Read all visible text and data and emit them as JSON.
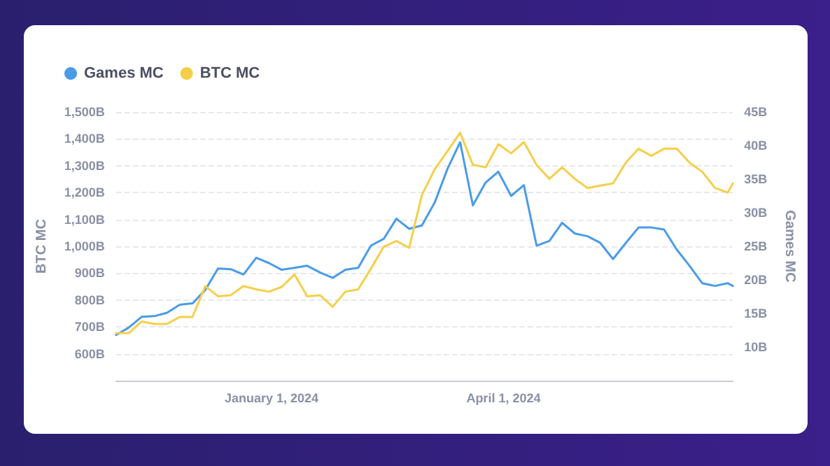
{
  "chart_data": {
    "type": "line",
    "x": [
      "2023-11-01",
      "2023-11-06",
      "2023-11-11",
      "2023-11-16",
      "2023-11-21",
      "2023-11-26",
      "2023-12-01",
      "2023-12-06",
      "2023-12-11",
      "2023-12-16",
      "2023-12-21",
      "2023-12-26",
      "2023-12-31",
      "2024-01-05",
      "2024-01-10",
      "2024-01-15",
      "2024-01-20",
      "2024-01-25",
      "2024-01-30",
      "2024-02-04",
      "2024-02-09",
      "2024-02-14",
      "2024-02-19",
      "2024-02-24",
      "2024-02-29",
      "2024-03-05",
      "2024-03-10",
      "2024-03-15",
      "2024-03-20",
      "2024-03-25",
      "2024-03-30",
      "2024-04-04",
      "2024-04-09",
      "2024-04-14",
      "2024-04-19",
      "2024-04-24",
      "2024-04-29",
      "2024-05-04",
      "2024-05-09",
      "2024-05-14",
      "2024-05-19",
      "2024-05-24",
      "2024-05-29",
      "2024-06-03",
      "2024-06-08",
      "2024-06-13",
      "2024-06-18",
      "2024-06-23",
      "2024-06-28",
      "2024-06-30"
    ],
    "series": [
      {
        "name": "Games MC",
        "color": "#4a9be8",
        "axis": "y2",
        "values": [
          11.8,
          12.9,
          14.5,
          14.6,
          15.1,
          16.3,
          16.5,
          18.5,
          21.7,
          21.6,
          20.8,
          23.3,
          22.5,
          21.5,
          21.8,
          22.1,
          21.1,
          20.3,
          21.5,
          21.8,
          25.1,
          26.1,
          29.1,
          27.6,
          28.1,
          31.5,
          36.5,
          40.5,
          31.1,
          34.5,
          36.1,
          32.5,
          34.1,
          25.1,
          25.8,
          28.5,
          26.9,
          26.5,
          25.5,
          23.1,
          25.5,
          27.8,
          27.8,
          27.5,
          24.5,
          22.1,
          19.5,
          19.1,
          19.5,
          19.1
        ]
      },
      {
        "name": "BTC MC",
        "color": "#f5cf4a",
        "values": [
          677,
          677,
          720,
          711,
          711,
          737,
          737,
          852,
          814,
          818,
          852,
          840,
          831,
          849,
          895,
          814,
          818,
          775,
          831,
          840,
          917,
          998,
          1020,
          994,
          1191,
          1286,
          1354,
          1423,
          1303,
          1294,
          1380,
          1346,
          1388,
          1303,
          1251,
          1294,
          1251,
          1217,
          1226,
          1234,
          1311,
          1363,
          1337,
          1363,
          1363,
          1311,
          1277,
          1217,
          1200,
          1234
        ]
      }
    ],
    "ylabel": "BTC MC",
    "y2label": "Games MC",
    "xlim": [
      "2023-11-01",
      "2024-06-30"
    ],
    "xticks": [
      {
        "value": "2024-01-01",
        "label": "January 1, 2024"
      },
      {
        "value": "2024-04-01",
        "label": "April 1, 2024"
      }
    ],
    "ylim": [
      500,
      1500
    ],
    "yticks": [
      {
        "value": 600,
        "label": "600B"
      },
      {
        "value": 700,
        "label": "700B"
      },
      {
        "value": 800,
        "label": "800B"
      },
      {
        "value": 900,
        "label": "900B"
      },
      {
        "value": 1000,
        "label": "1,000B"
      },
      {
        "value": 1100,
        "label": "1,100B"
      },
      {
        "value": 1200,
        "label": "1,200B"
      },
      {
        "value": 1300,
        "label": "1,300B"
      },
      {
        "value": 1400,
        "label": "1,400B"
      },
      {
        "value": 1500,
        "label": "1,500B"
      }
    ],
    "y2lim": [
      5,
      45
    ],
    "y2ticks": [
      {
        "value": 10,
        "label": "10B"
      },
      {
        "value": 15,
        "label": "15B"
      },
      {
        "value": 20,
        "label": "20B"
      },
      {
        "value": 25,
        "label": "25B"
      },
      {
        "value": 30,
        "label": "30B"
      },
      {
        "value": 35,
        "label": "35B"
      },
      {
        "value": 40,
        "label": "40B"
      },
      {
        "value": 45,
        "label": "45B"
      }
    ],
    "grid": "y",
    "legend": "top left",
    "marker": "none",
    "line_style": "solid"
  }
}
